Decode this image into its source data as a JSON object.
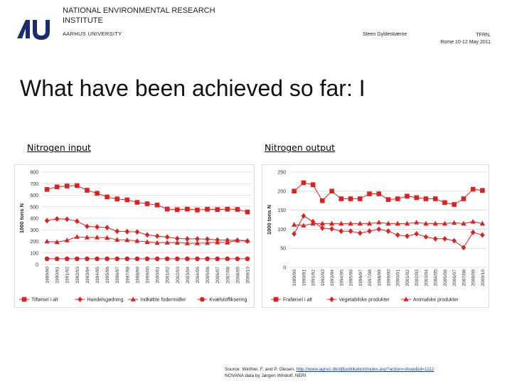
{
  "header": {
    "org_name": "NATIONAL ENVIRONMENTAL RESEARCH INSTITUTE",
    "university": "AARHUS UNIVERSITY",
    "author": "Steen Gyldenkærne",
    "event_line1": "TFRN,",
    "event_line2": "Rome 10-12 May 2011",
    "logo_icon": "au-logo-icon"
  },
  "slide": {
    "title": "What have been achieved so far: I",
    "left_label": "Nitrogen input",
    "right_label": "Nitrogen output"
  },
  "source": {
    "prefix": "Source: Winther, F. and P. Olesen, ",
    "link": "http://www.agrsci.dk/djfpublikation/index.asp?action=show&id=1112",
    "line2": "NOVANA data by Jørgen Windolf, NERI"
  },
  "colors": {
    "series": "#e02020",
    "grid": "#c8c8c8"
  },
  "chart_data": [
    {
      "type": "line",
      "title": "",
      "xlabel": "",
      "ylabel": "1000 tons N",
      "ylim": [
        0,
        800
      ],
      "yticks": [
        "0",
        "100",
        "200",
        "300",
        "400",
        "500",
        "600",
        "700",
        "800"
      ],
      "categories": [
        "1989/90",
        "1990/91",
        "1991/92",
        "1992/93",
        "1993/94",
        "1994/95",
        "1995/96",
        "1996/97",
        "1997/98",
        "1998/99",
        "1999/00",
        "2000/01",
        "2001/02",
        "2002/03",
        "2003/04",
        "2004/05",
        "2005/06",
        "2006/07",
        "2007/08",
        "2008/09",
        "2009/10"
      ],
      "legend_position": "bottom",
      "series": [
        {
          "name": "Tilførsel i alt",
          "marker": "square",
          "values": [
            650,
            672,
            680,
            683,
            643,
            617,
            585,
            568,
            560,
            538,
            526,
            515,
            480,
            475,
            480,
            472,
            478,
            476,
            479,
            477,
            455
          ]
        },
        {
          "name": "Handelsgødning",
          "marker": "diamond",
          "values": [
            380,
            395,
            392,
            375,
            330,
            325,
            320,
            288,
            285,
            282,
            257,
            246,
            238,
            225,
            222,
            222,
            220,
            213,
            210,
            210,
            203
          ]
        },
        {
          "name": "Indkøbte fodermidler",
          "marker": "triangle",
          "values": [
            200,
            195,
            210,
            240,
            235,
            235,
            232,
            215,
            212,
            205,
            196,
            188,
            190,
            189,
            185,
            185,
            187,
            192,
            190,
            210,
            207
          ]
        },
        {
          "name": "Kvælstoffiksering",
          "marker": "circle",
          "values": [
            50,
            50,
            50,
            50,
            50,
            50,
            50,
            50,
            50,
            50,
            50,
            50,
            50,
            50,
            50,
            50,
            50,
            50,
            50,
            50,
            50
          ]
        }
      ]
    },
    {
      "type": "line",
      "title": "",
      "xlabel": "",
      "ylabel": "1000 tons N",
      "ylim": [
        0,
        250
      ],
      "yticks": [
        "0",
        "50",
        "100",
        "150",
        "200",
        "250"
      ],
      "categories": [
        "1989/90",
        "1990/91",
        "1991/92",
        "1992/93",
        "1993/94",
        "1994/95",
        "1995/96",
        "1996/97",
        "1997/98",
        "1998/99",
        "1999/00",
        "2000/01",
        "2001/02",
        "2002/03",
        "2003/04",
        "2004/05",
        "2005/06",
        "2006/07",
        "2007/08",
        "2008/09",
        "2009/10"
      ],
      "legend_position": "bottom",
      "series": [
        {
          "name": "Fraførsel i alt",
          "marker": "square",
          "values": [
            200,
            222,
            217,
            175,
            200,
            180,
            180,
            180,
            193,
            193,
            178,
            180,
            187,
            183,
            180,
            180,
            170,
            165,
            180,
            205,
            202
          ]
        },
        {
          "name": "Vegetabilske produkter",
          "marker": "diamond",
          "values": [
            88,
            135,
            120,
            103,
            101,
            95,
            95,
            90,
            95,
            100,
            95,
            85,
            82,
            88,
            80,
            75,
            75,
            70,
            52,
            92,
            85
          ]
        },
        {
          "name": "Animalske produkter",
          "marker": "triangle",
          "values": [
            112,
            110,
            115,
            115,
            115,
            115,
            115,
            115,
            115,
            118,
            115,
            115,
            115,
            118,
            115,
            115,
            115,
            117,
            115,
            120,
            115
          ]
        }
      ]
    }
  ]
}
